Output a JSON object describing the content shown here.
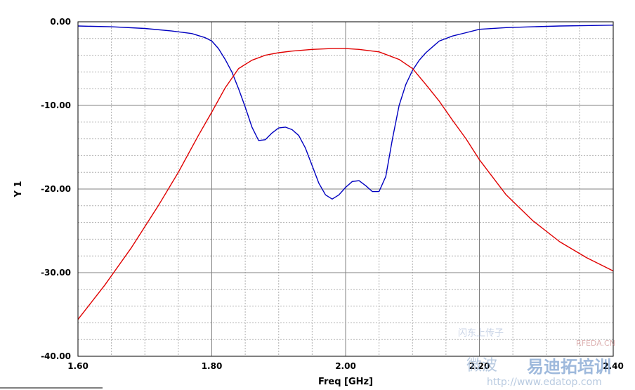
{
  "chart_data": {
    "type": "line",
    "title": "",
    "xlabel": "Freq [GHz]",
    "ylabel": "Y 1",
    "xlim": [
      1.6,
      2.4
    ],
    "ylim": [
      -40,
      0
    ],
    "x_ticks": [
      "1.60",
      "1.80",
      "2.00",
      "2.20",
      "2.40"
    ],
    "y_ticks": [
      "0.00",
      "-10.00",
      "-20.00",
      "-30.00",
      "-40.00"
    ],
    "grid": true,
    "legend": "none",
    "series": [
      {
        "color": "#0000c0",
        "x": [
          1.6,
          1.65,
          1.7,
          1.74,
          1.77,
          1.79,
          1.8,
          1.81,
          1.82,
          1.83,
          1.84,
          1.85,
          1.86,
          1.87,
          1.88,
          1.89,
          1.9,
          1.91,
          1.92,
          1.93,
          1.94,
          1.95,
          1.96,
          1.97,
          1.98,
          1.99,
          2.0,
          2.01,
          2.02,
          2.03,
          2.04,
          2.05,
          2.06,
          2.07,
          2.08,
          2.09,
          2.1,
          2.11,
          2.12,
          2.13,
          2.14,
          2.16,
          2.18,
          2.2,
          2.24,
          2.28,
          2.32,
          2.36,
          2.4
        ],
        "values": [
          -0.5,
          -0.6,
          -0.8,
          -1.1,
          -1.4,
          -1.9,
          -2.3,
          -3.2,
          -4.5,
          -6.0,
          -8.0,
          -10.2,
          -12.6,
          -14.2,
          -14.1,
          -13.3,
          -12.7,
          -12.6,
          -12.9,
          -13.6,
          -15.1,
          -17.2,
          -19.3,
          -20.7,
          -21.2,
          -20.7,
          -19.8,
          -19.1,
          -19.0,
          -19.6,
          -20.3,
          -20.3,
          -18.5,
          -14.0,
          -10.0,
          -7.5,
          -5.8,
          -4.6,
          -3.7,
          -3.0,
          -2.3,
          -1.7,
          -1.3,
          -0.9,
          -0.7,
          -0.6,
          -0.5,
          -0.45,
          -0.4
        ]
      },
      {
        "color": "#e00000",
        "x": [
          1.6,
          1.64,
          1.68,
          1.72,
          1.75,
          1.78,
          1.8,
          1.82,
          1.84,
          1.86,
          1.88,
          1.9,
          1.92,
          1.95,
          1.98,
          2.0,
          2.02,
          2.05,
          2.08,
          2.1,
          2.12,
          2.14,
          2.16,
          2.18,
          2.2,
          2.24,
          2.28,
          2.32,
          2.36,
          2.4
        ],
        "values": [
          -35.6,
          -31.5,
          -27.0,
          -22.0,
          -18.0,
          -13.6,
          -10.8,
          -7.9,
          -5.6,
          -4.6,
          -4.0,
          -3.7,
          -3.5,
          -3.3,
          -3.2,
          -3.2,
          -3.3,
          -3.6,
          -4.5,
          -5.6,
          -7.5,
          -9.5,
          -11.8,
          -14.0,
          -16.5,
          -20.7,
          -23.8,
          -26.3,
          -28.2,
          -29.8
        ]
      }
    ]
  },
  "watermark": {
    "line1": "闪东上传子",
    "site": "RFEDA.CN",
    "brand": "微波",
    "brand2": "易迪拓培训",
    "url": "http://www.edatop.com"
  }
}
